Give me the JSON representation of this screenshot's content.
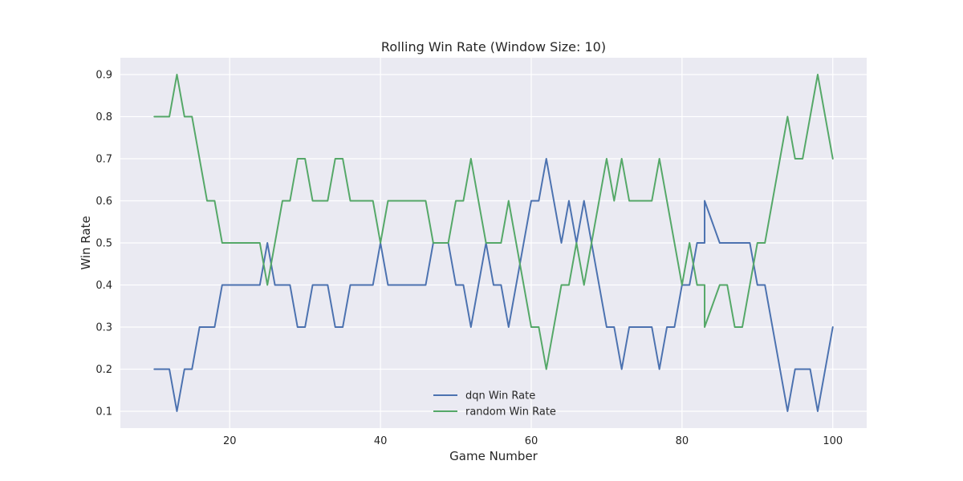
{
  "chart_data": {
    "type": "line",
    "title": "Rolling Win Rate (Window Size: 10)",
    "xlabel": "Game Number",
    "ylabel": "Win Rate",
    "xlim": [
      5.5,
      104.5
    ],
    "ylim": [
      0.06,
      0.94
    ],
    "xticks": [
      20,
      40,
      60,
      80,
      100
    ],
    "yticks": [
      0.1,
      0.2,
      0.3,
      0.4,
      0.5,
      0.6,
      0.7,
      0.8,
      0.9
    ],
    "grid": true,
    "legend_position": "bottom-center",
    "colors": {
      "background": "#eaeaf2",
      "grid": "#ffffff"
    },
    "series": [
      {
        "name": "dqn Win Rate",
        "color": "#4c72b0",
        "points": [
          [
            10,
            0.2
          ],
          [
            11,
            0.2
          ],
          [
            12,
            0.2
          ],
          [
            13,
            0.1
          ],
          [
            14,
            0.2
          ],
          [
            15,
            0.2
          ],
          [
            16,
            0.3
          ],
          [
            17,
            0.3
          ],
          [
            18,
            0.3
          ],
          [
            19,
            0.4
          ],
          [
            20,
            0.4
          ],
          [
            21,
            0.4
          ],
          [
            22,
            0.4
          ],
          [
            23,
            0.4
          ],
          [
            24,
            0.4
          ],
          [
            25,
            0.5
          ],
          [
            26,
            0.4
          ],
          [
            27,
            0.4
          ],
          [
            28,
            0.4
          ],
          [
            29,
            0.3
          ],
          [
            30,
            0.3
          ],
          [
            31,
            0.4
          ],
          [
            32,
            0.4
          ],
          [
            33,
            0.4
          ],
          [
            34,
            0.3
          ],
          [
            35,
            0.3
          ],
          [
            36,
            0.4
          ],
          [
            37,
            0.4
          ],
          [
            38,
            0.4
          ],
          [
            39,
            0.4
          ],
          [
            40,
            0.5
          ],
          [
            41,
            0.4
          ],
          [
            42,
            0.4
          ],
          [
            43,
            0.4
          ],
          [
            44,
            0.4
          ],
          [
            45,
            0.4
          ],
          [
            46,
            0.4
          ],
          [
            47,
            0.5
          ],
          [
            48,
            0.5
          ],
          [
            49,
            0.5
          ],
          [
            50,
            0.4
          ],
          [
            51,
            0.4
          ],
          [
            52,
            0.3
          ],
          [
            53,
            0.4
          ],
          [
            54,
            0.5
          ],
          [
            55,
            0.4
          ],
          [
            56,
            0.4
          ],
          [
            57,
            0.3
          ],
          [
            58,
            0.4
          ],
          [
            59,
            0.5
          ],
          [
            60,
            0.6
          ],
          [
            61,
            0.6
          ],
          [
            62,
            0.7
          ],
          [
            63,
            0.6
          ],
          [
            64,
            0.5
          ],
          [
            65,
            0.6
          ],
          [
            66,
            0.5
          ],
          [
            67,
            0.6
          ],
          [
            68,
            0.5
          ],
          [
            69,
            0.4
          ],
          [
            70,
            0.3
          ],
          [
            71,
            0.3
          ],
          [
            72,
            0.2
          ],
          [
            73,
            0.3
          ],
          [
            74,
            0.3
          ],
          [
            75,
            0.3
          ],
          [
            76,
            0.3
          ],
          [
            77,
            0.2
          ],
          [
            78,
            0.3
          ],
          [
            79,
            0.3
          ],
          [
            80,
            0.4
          ],
          [
            81,
            0.4
          ],
          [
            82,
            0.5
          ],
          [
            83,
            0.5
          ],
          [
            83,
            0.6
          ],
          [
            84,
            0.55
          ],
          [
            85,
            0.5
          ],
          [
            86,
            0.5
          ],
          [
            87,
            0.5
          ],
          [
            88,
            0.5
          ],
          [
            89,
            0.5
          ],
          [
            90,
            0.4
          ],
          [
            91,
            0.4
          ],
          [
            92,
            0.3
          ],
          [
            93,
            0.2
          ],
          [
            94,
            0.1
          ],
          [
            95,
            0.2
          ],
          [
            96,
            0.2
          ],
          [
            97,
            0.2
          ],
          [
            98,
            0.1
          ],
          [
            99,
            0.2
          ],
          [
            100,
            0.3
          ]
        ]
      },
      {
        "name": "random Win Rate",
        "color": "#55a868",
        "points": [
          [
            10,
            0.8
          ],
          [
            11,
            0.8
          ],
          [
            12,
            0.8
          ],
          [
            13,
            0.9
          ],
          [
            14,
            0.8
          ],
          [
            15,
            0.8
          ],
          [
            16,
            0.7
          ],
          [
            17,
            0.6
          ],
          [
            18,
            0.6
          ],
          [
            19,
            0.5
          ],
          [
            20,
            0.5
          ],
          [
            21,
            0.5
          ],
          [
            22,
            0.5
          ],
          [
            23,
            0.5
          ],
          [
            24,
            0.5
          ],
          [
            25,
            0.4
          ],
          [
            26,
            0.5
          ],
          [
            27,
            0.6
          ],
          [
            28,
            0.6
          ],
          [
            29,
            0.7
          ],
          [
            30,
            0.7
          ],
          [
            31,
            0.6
          ],
          [
            32,
            0.6
          ],
          [
            33,
            0.6
          ],
          [
            34,
            0.7
          ],
          [
            35,
            0.7
          ],
          [
            36,
            0.6
          ],
          [
            37,
            0.6
          ],
          [
            38,
            0.6
          ],
          [
            39,
            0.6
          ],
          [
            40,
            0.5
          ],
          [
            41,
            0.6
          ],
          [
            42,
            0.6
          ],
          [
            43,
            0.6
          ],
          [
            44,
            0.6
          ],
          [
            45,
            0.6
          ],
          [
            46,
            0.6
          ],
          [
            47,
            0.5
          ],
          [
            48,
            0.5
          ],
          [
            49,
            0.5
          ],
          [
            50,
            0.6
          ],
          [
            51,
            0.6
          ],
          [
            52,
            0.7
          ],
          [
            53,
            0.6
          ],
          [
            54,
            0.5
          ],
          [
            55,
            0.5
          ],
          [
            56,
            0.5
          ],
          [
            57,
            0.6
          ],
          [
            58,
            0.5
          ],
          [
            59,
            0.4
          ],
          [
            60,
            0.3
          ],
          [
            61,
            0.3
          ],
          [
            62,
            0.2
          ],
          [
            63,
            0.3
          ],
          [
            64,
            0.4
          ],
          [
            65,
            0.4
          ],
          [
            66,
            0.5
          ],
          [
            67,
            0.4
          ],
          [
            68,
            0.5
          ],
          [
            69,
            0.6
          ],
          [
            70,
            0.7
          ],
          [
            71,
            0.6
          ],
          [
            72,
            0.7
          ],
          [
            73,
            0.6
          ],
          [
            74,
            0.6
          ],
          [
            75,
            0.6
          ],
          [
            76,
            0.6
          ],
          [
            77,
            0.7
          ],
          [
            78,
            0.6
          ],
          [
            79,
            0.5
          ],
          [
            80,
            0.4
          ],
          [
            81,
            0.5
          ],
          [
            82,
            0.4
          ],
          [
            83,
            0.4
          ],
          [
            83,
            0.3
          ],
          [
            84,
            0.35
          ],
          [
            85,
            0.4
          ],
          [
            86,
            0.4
          ],
          [
            87,
            0.3
          ],
          [
            88,
            0.3
          ],
          [
            89,
            0.4
          ],
          [
            90,
            0.5
          ],
          [
            91,
            0.5
          ],
          [
            92,
            0.6
          ],
          [
            93,
            0.7
          ],
          [
            94,
            0.8
          ],
          [
            95,
            0.7
          ],
          [
            96,
            0.7
          ],
          [
            97,
            0.8
          ],
          [
            98,
            0.9
          ],
          [
            99,
            0.8
          ],
          [
            100,
            0.7
          ]
        ]
      }
    ]
  }
}
